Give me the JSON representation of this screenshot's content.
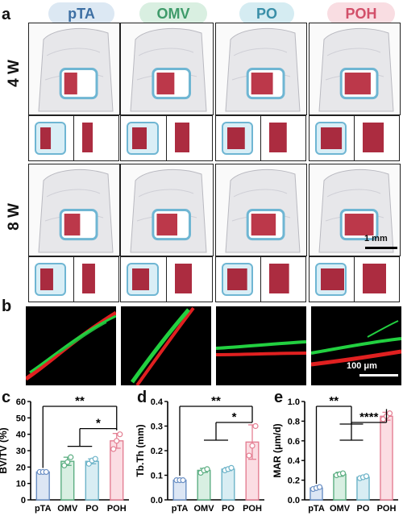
{
  "panel_labels": {
    "a": "a",
    "b": "b",
    "c": "c",
    "d": "d",
    "e": "e"
  },
  "groups": [
    {
      "label": "pTA",
      "color": "#3d6fa3",
      "bg": "#dce8f3"
    },
    {
      "label": "OMV",
      "color": "#3f9b6a",
      "bg": "#d9efe1"
    },
    {
      "label": "PO",
      "color": "#3a8fa8",
      "bg": "#d5ecf2"
    },
    {
      "label": "POH",
      "color": "#d2506a",
      "bg": "#f9dde2"
    }
  ],
  "row_labels": {
    "w4": "4 W",
    "w8": "8 W"
  },
  "scale_labels": {
    "micro_ct": "1 mm",
    "fluorescence": "100 μm"
  },
  "chart_data": [
    {
      "type": "bar",
      "panel": "c",
      "categories": [
        "pTA",
        "OMV",
        "PO",
        "POH"
      ],
      "values": [
        17,
        23.5,
        23.5,
        36
      ],
      "points": [
        [
          17,
          17,
          17
        ],
        [
          21,
          23,
          26
        ],
        [
          22,
          24,
          25
        ],
        [
          31,
          36,
          40
        ]
      ],
      "error": [
        0.5,
        2.5,
        1.5,
        4.5
      ],
      "ylabel": "BV/TV (%)",
      "ylim": [
        0,
        60
      ],
      "yticks": [
        0,
        10,
        20,
        30,
        40,
        50,
        60
      ],
      "colors": [
        "#6a8fc4",
        "#5cae82",
        "#6cb3c8",
        "#e47f93"
      ],
      "fills": [
        "#dce6f4",
        "#d8efe2",
        "#d8edf3",
        "#fbdde3"
      ],
      "significance": [
        {
          "label": "**",
          "from": "pTA",
          "to": "POH"
        },
        {
          "label": "*",
          "from": "OMV+PO",
          "to": "POH"
        }
      ]
    },
    {
      "type": "bar",
      "panel": "d",
      "categories": [
        "pTA",
        "OMV",
        "PO",
        "POH"
      ],
      "values": [
        0.08,
        0.12,
        0.125,
        0.235
      ],
      "points": [
        [
          0.08,
          0.08,
          0.08
        ],
        [
          0.11,
          0.12,
          0.125
        ],
        [
          0.12,
          0.125,
          0.13
        ],
        [
          0.18,
          0.22,
          0.3
        ]
      ],
      "error": [
        0.005,
        0.008,
        0.006,
        0.07
      ],
      "ylabel": "Tb.Th (mm)",
      "ylim": [
        0.0,
        0.4
      ],
      "yticks": [
        "0.0",
        "0.1",
        "0.2",
        "0.3",
        "0.4"
      ],
      "colors": [
        "#6a8fc4",
        "#5cae82",
        "#6cb3c8",
        "#e47f93"
      ],
      "fills": [
        "#dce6f4",
        "#d8efe2",
        "#d8edf3",
        "#fbdde3"
      ],
      "significance": [
        {
          "label": "**",
          "from": "pTA",
          "to": "POH"
        },
        {
          "label": "*",
          "from": "OMV+PO",
          "to": "POH"
        }
      ]
    },
    {
      "type": "bar",
      "panel": "e",
      "categories": [
        "pTA",
        "OMV",
        "PO",
        "POH"
      ],
      "values": [
        0.12,
        0.26,
        0.23,
        0.85
      ],
      "points": [
        [
          0.11,
          0.12,
          0.13
        ],
        [
          0.25,
          0.26,
          0.27
        ],
        [
          0.22,
          0.23,
          0.24
        ],
        [
          0.82,
          0.85,
          0.88
        ]
      ],
      "error": [
        0.01,
        0.02,
        0.01,
        0.04
      ],
      "ylabel": "MAR (μm/d)",
      "ylim": [
        0.0,
        1.0
      ],
      "yticks": [
        "0.0",
        "0.2",
        "0.4",
        "0.6",
        "0.8",
        "1.0"
      ],
      "colors": [
        "#6a8fc4",
        "#5cae82",
        "#6cb3c8",
        "#e47f93"
      ],
      "fills": [
        "#dce6f4",
        "#d8efe2",
        "#d8edf3",
        "#fbdde3"
      ],
      "significance": [
        {
          "label": "**",
          "from": "pTA",
          "to": "OMV+PO"
        },
        {
          "label": "****",
          "from": "OMV+PO",
          "to": "POH"
        }
      ]
    }
  ]
}
